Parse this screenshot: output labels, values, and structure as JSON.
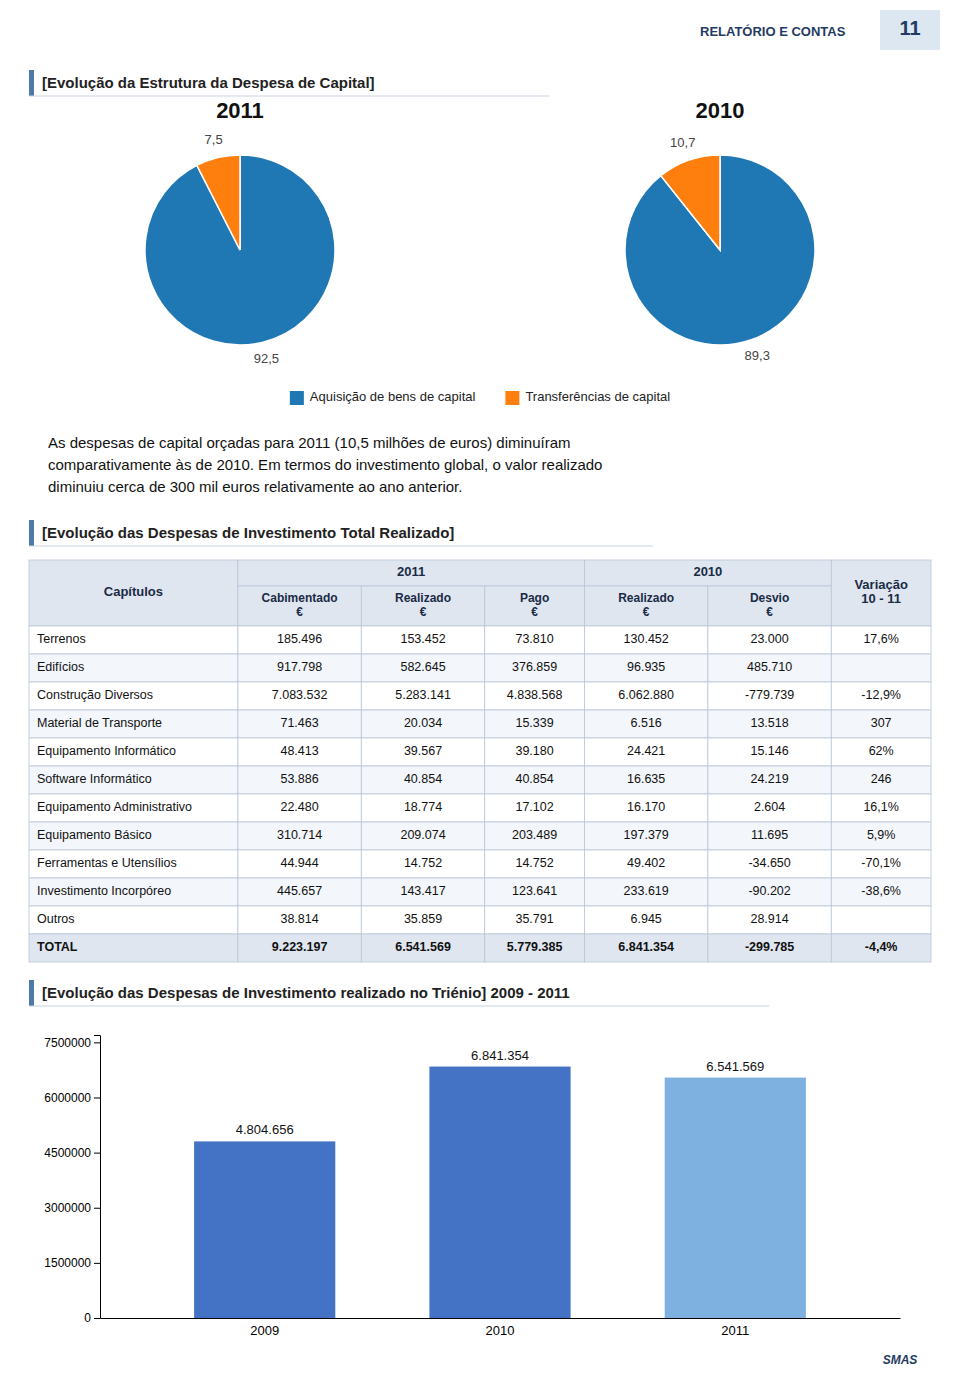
{
  "page": {
    "title": "RELATÓRIO E CONTAS",
    "logo": "11",
    "body_text": [
      "As despesas de capital orçadas para 2011 (10,5 milhões de euros) diminuíram",
      "comparativamente às de 2010. Em termos do investimento global, o valor realizado",
      "diminuiu cerca de 300 mil euros relativamente ao ano anterior."
    ],
    "footer": "SMAS"
  },
  "chart_data": [
    {
      "type": "pie",
      "title": "[Evolução da Estrutura da Despesa de Capital]",
      "categories": [
        "Aquisição de bens de capital",
        "Transferências de capital"
      ],
      "series": [
        {
          "name": "2011",
          "values": [
            92.5,
            7.5
          ],
          "value_labels": [
            "92,5",
            "7,5"
          ]
        },
        {
          "name": "2010",
          "values": [
            89.3,
            10.7
          ],
          "value_labels": [
            "89,3",
            "10,7"
          ]
        }
      ],
      "data_labels": true,
      "legend": "bottom"
    },
    {
      "type": "table",
      "title": "[Evolução das Despesas de Investimento Total Realizado]",
      "columns": [
        "Capítulos",
        "Cabimentado\n€",
        "Realizado\n€",
        "Pago\n€",
        "Realizado\n€",
        "Desvio\n€",
        "Variação\n10 - 11"
      ],
      "column_groups": [
        null,
        "2011",
        "2011",
        "2011",
        "2010",
        "2010",
        null
      ],
      "rows": [
        [
          "Terrenos",
          "185.496",
          "153.452",
          "73.810",
          "130.452",
          "23.000",
          "17,6%"
        ],
        [
          "Edifícios",
          "917.798",
          "582.645",
          "376.859",
          "96.935",
          "485.710",
          null
        ],
        [
          "Construção Diversos",
          "7.083.532",
          "5.283.141",
          "4.838.568",
          "6.062.880",
          "-779.739",
          "-12,9%"
        ],
        [
          "Material de Transporte",
          "71.463",
          "20.034",
          "15.339",
          "6.516",
          "13.518",
          "307"
        ],
        [
          "Equipamento Informático",
          "48.413",
          "39.567",
          "39.180",
          "24.421",
          "15.146",
          "62%"
        ],
        [
          "Software Informático",
          "53.886",
          "40.854",
          "40.854",
          "16.635",
          "24.219",
          "246"
        ],
        [
          "Equipamento Administrativo",
          "22.480",
          "18.774",
          "17.102",
          "16.170",
          "2.604",
          "16,1%"
        ],
        [
          "Equipamento Básico",
          "310.714",
          "209.074",
          "203.489",
          "197.379",
          "11.695",
          "5,9%"
        ],
        [
          "Ferramentas e Utensílios",
          "44.944",
          "14.752",
          "14.752",
          "49.402",
          "-34.650",
          "-70,1%"
        ],
        [
          "Investimento Incorpóreo",
          "445.657",
          "143.417",
          "123.641",
          "233.619",
          "-90.202",
          "-38,6%"
        ],
        [
          "Outros",
          "38.814",
          "35.859",
          "35.791",
          "6.945",
          "28.914",
          null
        ],
        [
          "TOTAL",
          "9.223.197",
          "6.541.569",
          "5.779.385",
          "6.841.354",
          "-299.785",
          "-4,4%"
        ]
      ]
    },
    {
      "type": "bar",
      "title": "[Evolução das Despesas de Investimento realizado no Triénio] 2009 - 2011",
      "categories": [
        "2009",
        "2010",
        "2011"
      ],
      "values": [
        4804656,
        6841354,
        6541569
      ],
      "value_labels": [
        "4.804.656",
        "6.841.354",
        "6.541.569"
      ],
      "colors": [
        "#4472C4",
        "#4472C4",
        "#7EB0E0"
      ],
      "data_labels": true,
      "ylim": [
        0,
        7700000
      ],
      "yticks": [
        0,
        1500000,
        3000000,
        4500000,
        6000000,
        7500000
      ]
    }
  ]
}
